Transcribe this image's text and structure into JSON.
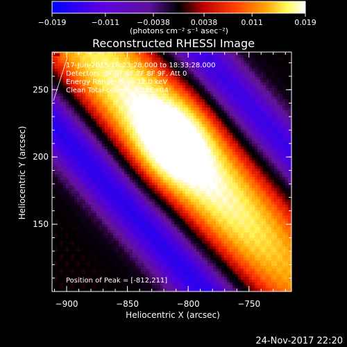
{
  "chart_data": {
    "type": "heatmap",
    "title": "Reconstructed RHESSI Image",
    "xlabel": "Heliocentric X (arcsec)",
    "ylabel": "Heliocentric Y (arcsec)",
    "xlim": [
      -912,
      -715
    ],
    "ylim": [
      100,
      278
    ],
    "x_ticks": [
      -900,
      -850,
      -800,
      -750
    ],
    "y_ticks": [
      150,
      200,
      250
    ],
    "x_tick_labels": [
      "−900",
      "−850",
      "−800",
      "−750"
    ],
    "y_tick_labels": [
      "150",
      "200",
      "250"
    ],
    "colorbar": {
      "range": [
        -0.019,
        0.019
      ],
      "ticks": [
        -0.019,
        -0.011,
        -0.0038,
        0.0038,
        0.011,
        0.019
      ],
      "tick_labels": [
        "−0.019",
        "−0.011",
        "−0.0038",
        "0.0038",
        "0.011",
        "0.019"
      ],
      "unit_label": "(photons cm⁻² s⁻¹ asec⁻²)"
    },
    "peak_position": [
      -812,
      211
    ],
    "colormap": [
      "#0000ff",
      "#8000c0",
      "#000000",
      "#ff2000",
      "#ffa000",
      "#ffff80",
      "#ffffff"
    ]
  },
  "info": {
    "line1": "17-Jun-2015 18:23:28.000 to 18:33:28.000",
    "line2": "Detectors: 3F 5F 6F 7F 8F 9F, Att 0",
    "line3": "Energy Range: 6.0 - 12.0 keV",
    "line4": "Clean    Total counts: 2.58E+04",
    "peak_text": "Position of Peak = [-812,211]"
  },
  "footer": {
    "timestamp": "24-Nov-2017 22:20"
  }
}
